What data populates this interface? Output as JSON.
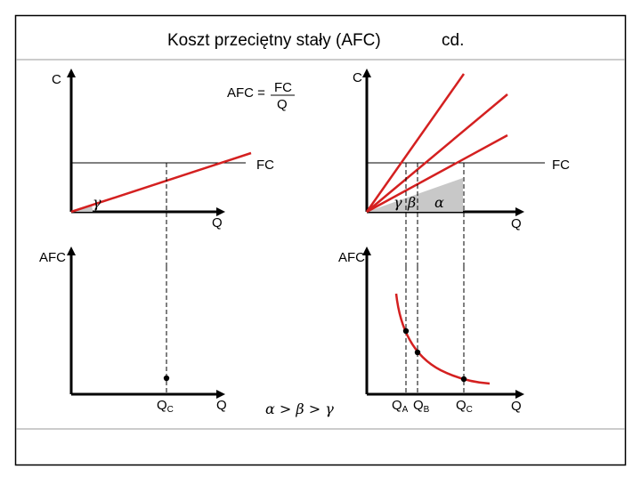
{
  "title": {
    "main": "Koszt  przeciętny  stały  (AFC)",
    "suffix": "cd."
  },
  "formula": {
    "lhs": "AFC =",
    "numerator": "FC",
    "denominator": "Q"
  },
  "axes": {
    "cost": "C",
    "quantity": "Q",
    "afc": "AFC"
  },
  "fixed_cost_label": "FC",
  "angles": {
    "gamma": "γ",
    "beta": "β",
    "alpha": "α"
  },
  "quantity_marks": {
    "base": "Q",
    "sub_a": "A",
    "sub_b": "B",
    "sub_c": "C"
  },
  "inequality": "α > β > γ",
  "colors": {
    "curve": "#d42020",
    "axis": "#000000",
    "guide": "#000000",
    "frame": "#000000"
  }
}
